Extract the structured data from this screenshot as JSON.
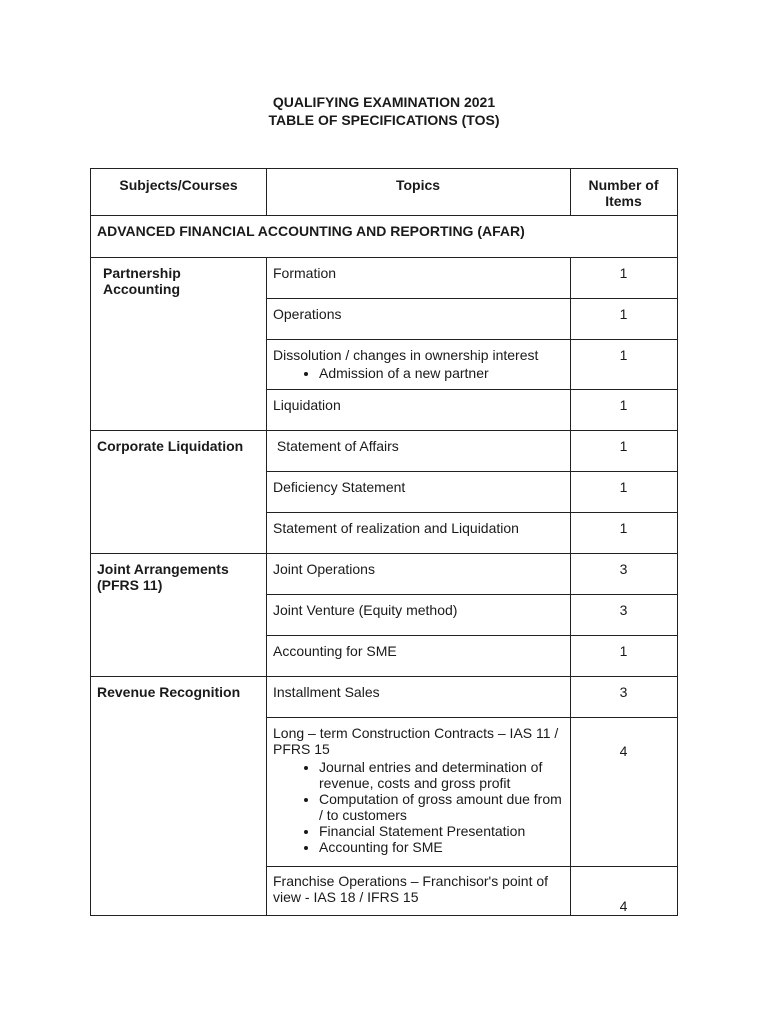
{
  "title": {
    "line1": "QUALIFYING EXAMINATION 2021",
    "line2": "TABLE OF SPECIFICATIONS (TOS)"
  },
  "table": {
    "headers": [
      "Subjects/Courses",
      "Topics",
      "Number of Items"
    ],
    "section": "ADVANCED FINANCIAL ACCOUNTING AND REPORTING (AFAR)",
    "groups": [
      {
        "subject": "Partnership Accounting",
        "rows": [
          {
            "topic": "Formation",
            "bullets": [],
            "items": "1"
          },
          {
            "topic": "Operations",
            "bullets": [],
            "items": "1"
          },
          {
            "topic": "Dissolution / changes in ownership interest",
            "bullets": [
              "Admission of a new partner"
            ],
            "items": "1"
          },
          {
            "topic": "Liquidation",
            "bullets": [],
            "items": "1"
          }
        ]
      },
      {
        "subject": "Corporate Liquidation",
        "rows": [
          {
            "topic": " Statement of Affairs",
            "bullets": [],
            "items": "1"
          },
          {
            "topic": "Deficiency Statement",
            "bullets": [],
            "items": "1"
          },
          {
            "topic": "Statement of realization and Liquidation",
            "bullets": [],
            "items": "1"
          }
        ]
      },
      {
        "subject": "Joint Arrangements (PFRS 11)",
        "rows": [
          {
            "topic": "Joint Operations",
            "bullets": [],
            "items": "3"
          },
          {
            "topic": "Joint Venture (Equity method)",
            "bullets": [],
            "items": "3"
          },
          {
            "topic": "Accounting for SME",
            "bullets": [],
            "items": "1"
          }
        ]
      },
      {
        "subject": "Revenue Recognition",
        "rows": [
          {
            "topic": "Installment Sales",
            "bullets": [],
            "items": "3"
          },
          {
            "topic": "Long – term Construction Contracts – IAS 11 / PFRS 15",
            "bullets": [
              "Journal entries and determination of revenue, costs and gross profit",
              "Computation of gross amount due from / to customers",
              "Financial Statement Presentation",
              "Accounting for SME"
            ],
            "items": "4"
          },
          {
            "topic": "Franchise Operations – Franchisor's point of view - IAS 18 / IFRS 15",
            "bullets": [],
            "items": "4"
          }
        ]
      }
    ]
  }
}
